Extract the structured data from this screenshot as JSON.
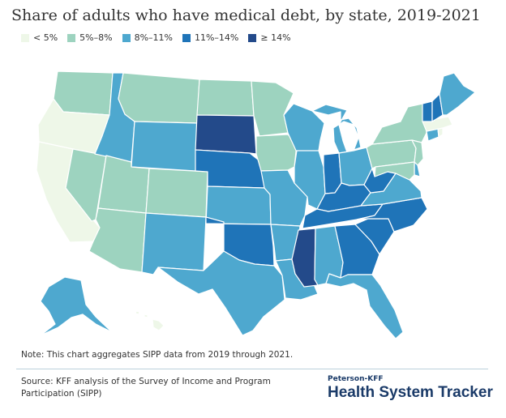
{
  "title": "Share of adults who have medical debt, by state, 2019-2021",
  "legend": [
    {
      "label": "< 5%",
      "color": "#eef7e8"
    },
    {
      "label": "5%–8%",
      "color": "#9dd3bf"
    },
    {
      "label": "8%–11%",
      "color": "#4ea8cf"
    },
    {
      "label": "11%–14%",
      "color": "#1f74b8"
    },
    {
      "label": "≥ 14%",
      "color": "#234a8a"
    }
  ],
  "chart_data": {
    "type": "choropleth",
    "bins": [
      "< 5%",
      "5%–8%",
      "8%–11%",
      "11%–14%",
      "≥ 14%"
    ],
    "states": {
      "WA": 1,
      "OR": 0,
      "CA": 0,
      "NV": 1,
      "ID": 2,
      "MT": 1,
      "WY": 2,
      "UT": 1,
      "AZ": 1,
      "CO": 1,
      "NM": 2,
      "ND": 1,
      "SD": 4,
      "NE": 3,
      "KS": 2,
      "OK": 3,
      "TX": 2,
      "MN": 1,
      "IA": 1,
      "MO": 2,
      "AR": 2,
      "LA": 2,
      "WI": 2,
      "IL": 2,
      "MI": 2,
      "IN": 3,
      "OH": 2,
      "KY": 3,
      "TN": 3,
      "MS": 4,
      "AL": 2,
      "GA": 3,
      "FL": 2,
      "SC": 3,
      "NC": 3,
      "VA": 2,
      "WV": 3,
      "PA": 1,
      "NY": 1,
      "VT": 3,
      "NH": 3,
      "ME": 2,
      "MA": 0,
      "CT": 2,
      "RI": 0,
      "NJ": 1,
      "DE": 2,
      "MD": 1,
      "AK": 2,
      "HI": 0
    }
  },
  "note": "Note: This chart aggregates SIPP data from 2019 through 2021.",
  "source": "Source: KFF analysis of the Survey of Income and Program Participation (SIPP)",
  "brand_small": "Peterson-KFF",
  "brand": "Health System Tracker"
}
